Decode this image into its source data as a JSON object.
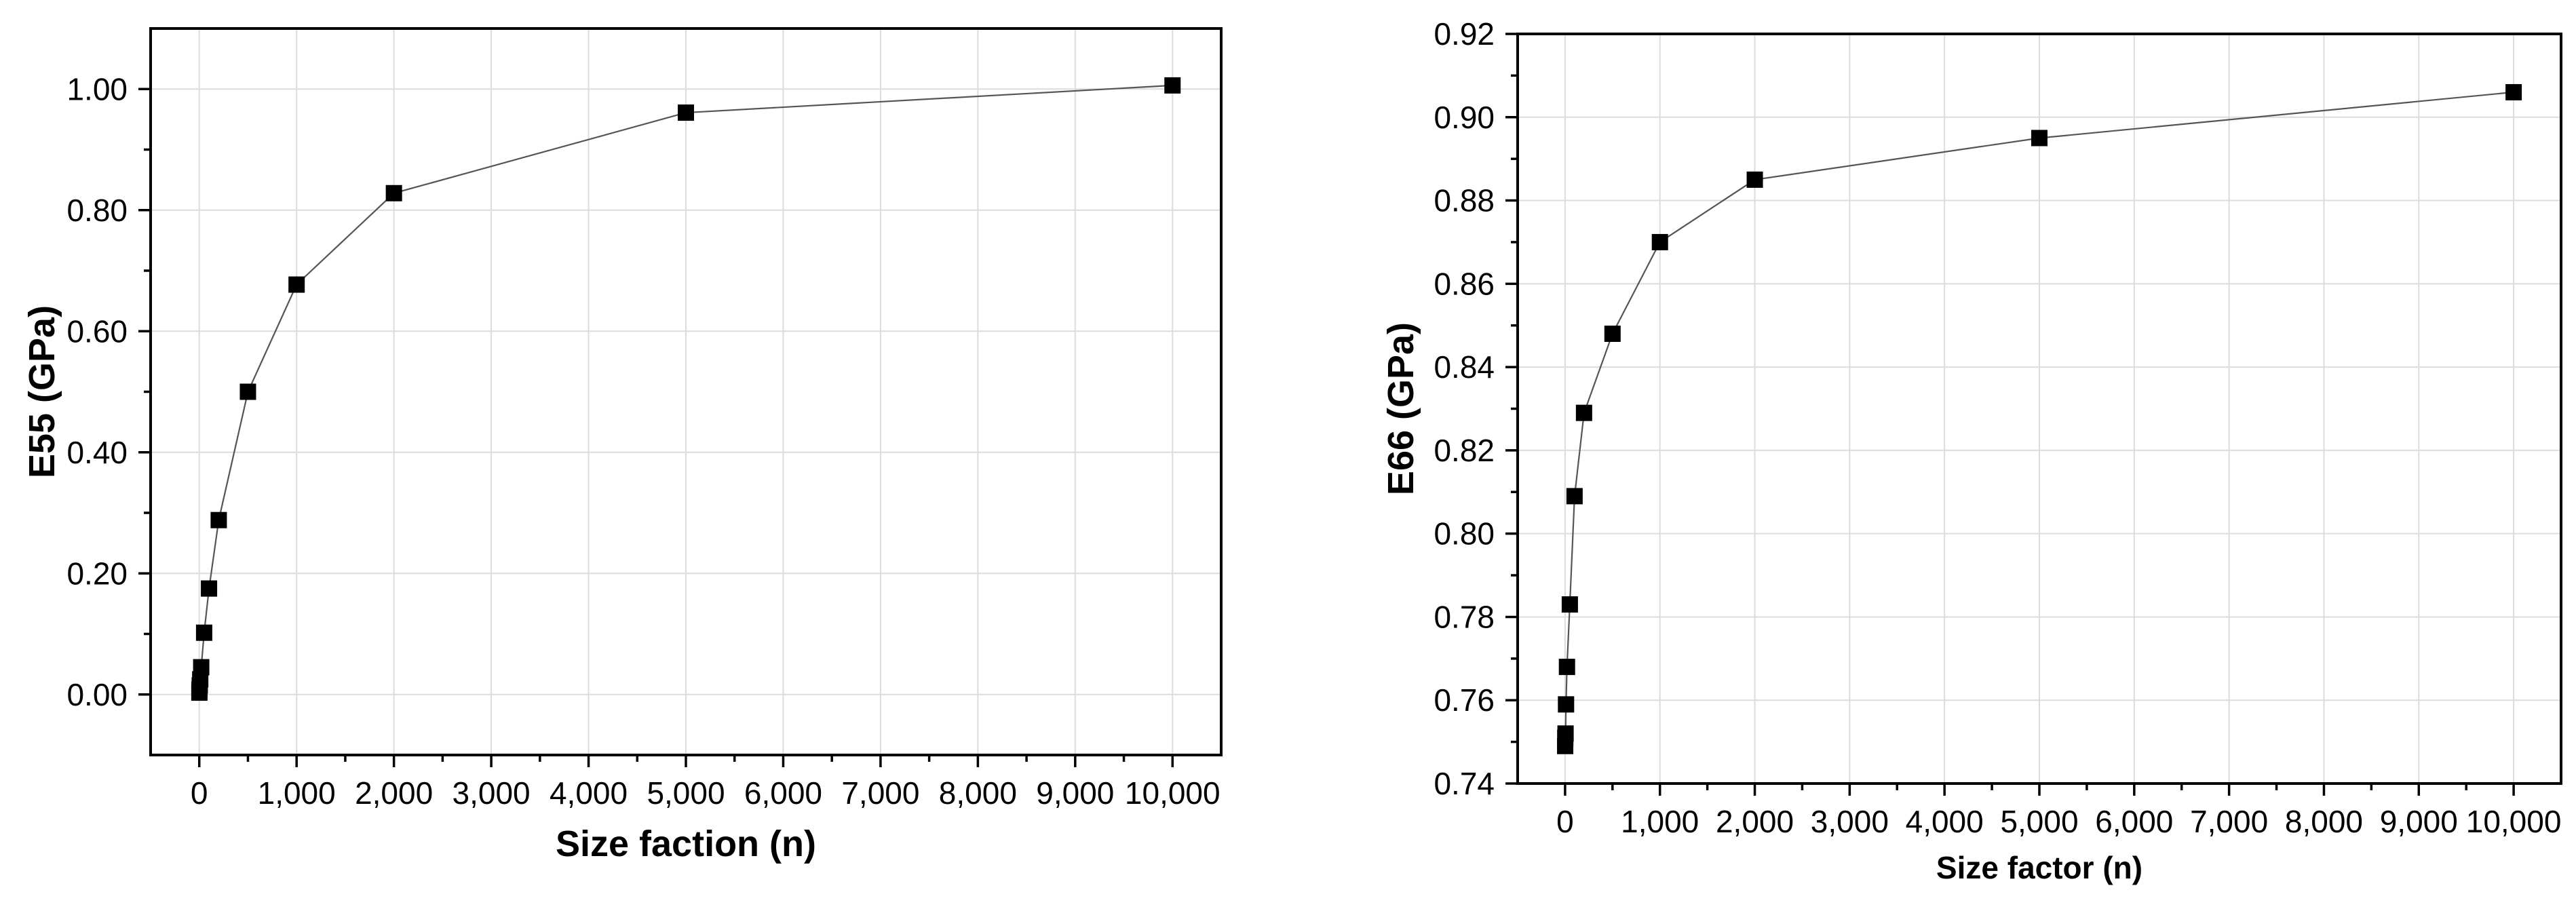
{
  "chart_data": [
    {
      "type": "scatter",
      "xlabel": "Size faction (n)",
      "ylabel": "E55 (GPa)",
      "xlim": [
        -500,
        10500
      ],
      "ylim": [
        -0.1,
        1.1
      ],
      "xticks": [
        0,
        1000,
        2000,
        3000,
        4000,
        5000,
        6000,
        7000,
        8000,
        9000,
        10000
      ],
      "xtick_labels": [
        "0",
        "1,000",
        "2,000",
        "3,000",
        "4,000",
        "5,000",
        "6,000",
        "7,000",
        "8,000",
        "9,000",
        "10,000"
      ],
      "yticks": [
        0,
        0.2,
        0.4,
        0.6,
        0.8,
        1.0
      ],
      "ytick_labels": [
        "0.00",
        "0.20",
        "0.40",
        "0.60",
        "0.80",
        "1.00"
      ],
      "grid": true,
      "line": true,
      "marker": "square",
      "color": "#000000",
      "series": [
        {
          "x": [
            1,
            2,
            5,
            10,
            20,
            50,
            100,
            200,
            500,
            1000,
            2000,
            5000,
            10000
          ],
          "y": [
            0.003,
            0.008,
            0.015,
            0.025,
            0.045,
            0.102,
            0.175,
            0.288,
            0.5,
            0.677,
            0.828,
            0.961,
            1.006
          ]
        }
      ]
    },
    {
      "type": "scatter",
      "xlabel": "Size factor (n)",
      "ylabel": "E66 (GPa)",
      "xlim": [
        -500,
        10500
      ],
      "ylim": [
        0.74,
        0.92
      ],
      "xticks": [
        0,
        1000,
        2000,
        3000,
        4000,
        5000,
        6000,
        7000,
        8000,
        9000,
        10000
      ],
      "xtick_labels": [
        "0",
        "1,000",
        "2,000",
        "3,000",
        "4,000",
        "5,000",
        "6,000",
        "7,000",
        "8,000",
        "9,000",
        "10,000"
      ],
      "yticks": [
        0.74,
        0.76,
        0.78,
        0.8,
        0.82,
        0.84,
        0.86,
        0.88,
        0.9,
        0.92
      ],
      "ytick_labels": [
        "0.74",
        "0.76",
        "0.78",
        "0.80",
        "0.82",
        "0.84",
        "0.86",
        "0.88",
        "0.90",
        "0.92"
      ],
      "grid": true,
      "line": true,
      "marker": "square",
      "color": "#000000",
      "series": [
        {
          "x": [
            1,
            2,
            5,
            10,
            20,
            50,
            100,
            200,
            500,
            1000,
            2000,
            5000,
            10000
          ],
          "y": [
            0.749,
            0.751,
            0.752,
            0.759,
            0.768,
            0.783,
            0.809,
            0.829,
            0.848,
            0.87,
            0.885,
            0.895,
            0.906
          ]
        }
      ]
    }
  ]
}
